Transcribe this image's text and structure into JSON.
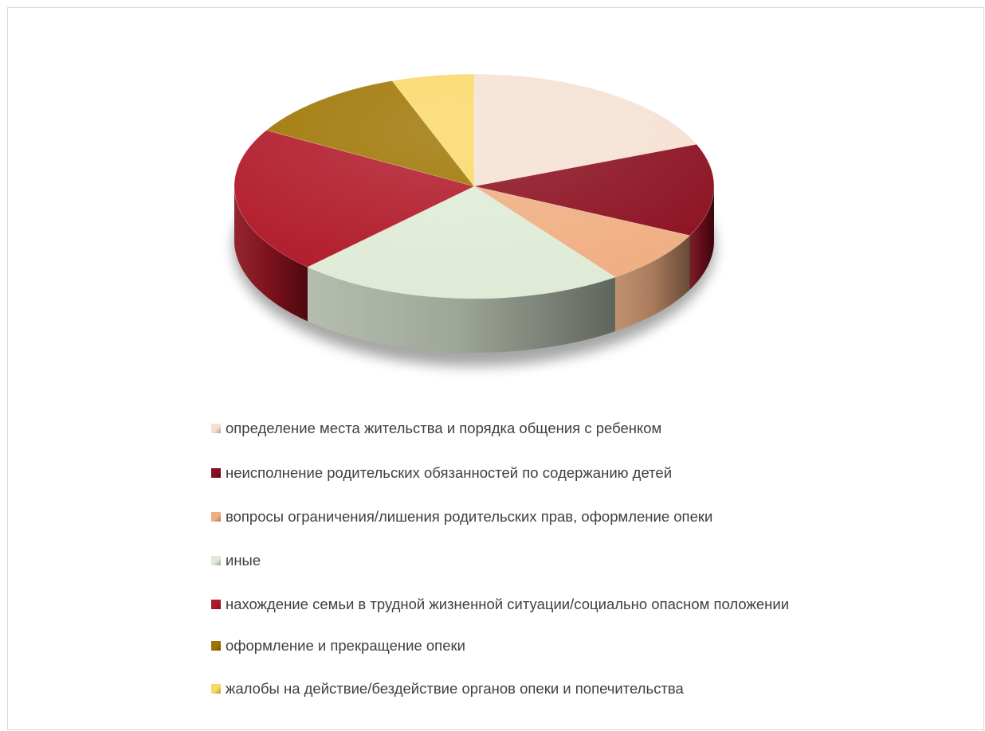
{
  "chart_data": {
    "type": "pie",
    "style": "3d",
    "title": "",
    "legend_position": "bottom",
    "series": [
      {
        "values": [
          17,
          12,
          7,
          20,
          19,
          10,
          5
        ],
        "categories": [
          "определение места жительства и порядка общения с ребенком",
          "неисполнение родительских обязанностей по содержанию детей",
          "вопросы ограничения/лишения родительских прав, оформление опеки",
          "иные",
          "нахождение семьи в трудной жизненной ситуации/социально опасном положении",
          "оформление и прекращение опеки",
          "жалобы на действие/бездействие органов опеки и попечительства"
        ]
      }
    ],
    "colors": [
      "#f5e1d3",
      "#8b0f1f",
      "#f0ae82",
      "#dfebd6",
      "#b01727",
      "#9e7400",
      "#fad866"
    ]
  },
  "legend": {
    "items": [
      {
        "label": "определение места жительства и порядка общения с ребенком"
      },
      {
        "label": "неисполнение родительских обязанностей по содержанию детей"
      },
      {
        "label": "вопросы ограничения/лишения родительских прав, оформление опеки"
      },
      {
        "label": "иные"
      },
      {
        "label": "нахождение семьи в трудной жизненной ситуации/социально опасном положении"
      },
      {
        "label": "оформление и прекращение опеки"
      },
      {
        "label": "жалобы на действие/бездействие органов опеки и попечительства"
      }
    ]
  }
}
